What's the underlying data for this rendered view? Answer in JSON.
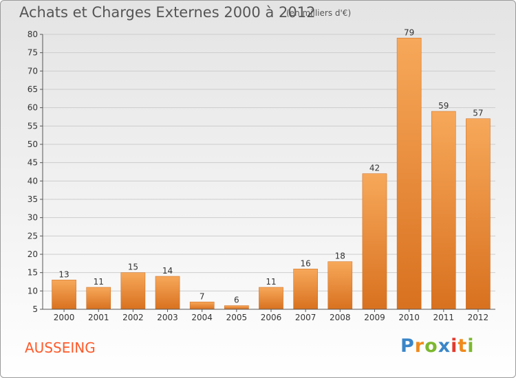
{
  "header": {
    "title": "Achats et Charges Externes 2000 à 2012",
    "subtitle": "(en milliers d'€)"
  },
  "footer": {
    "commune": "AUSSEING",
    "logo_text": "Proxiti",
    "logo_colors": [
      "#3a86c8",
      "#f08a1c",
      "#7cb82f",
      "#3a86c8",
      "#e23a2e",
      "#f08a1c",
      "#7cb82f"
    ]
  },
  "colors": {
    "bar_top": "#f7a85a",
    "bar_bottom": "#d8711f",
    "commune_text": "#ff5a2a",
    "grid": "#cccccc",
    "text": "#333333"
  },
  "chart_data": {
    "type": "bar",
    "title": "Achats et Charges Externes 2000 à 2012",
    "subtitle": "(en milliers d'€)",
    "categories": [
      "2000",
      "2001",
      "2002",
      "2003",
      "2004",
      "2005",
      "2006",
      "2007",
      "2008",
      "2009",
      "2010",
      "2011",
      "2012"
    ],
    "values": [
      13,
      11,
      15,
      14,
      7,
      6,
      11,
      16,
      18,
      42,
      79,
      59,
      57
    ],
    "ylim": [
      5,
      80
    ],
    "yticks": [
      5,
      10,
      15,
      20,
      25,
      30,
      35,
      40,
      45,
      50,
      55,
      60,
      65,
      70,
      75,
      80
    ],
    "grid": true,
    "data_labels": true
  }
}
